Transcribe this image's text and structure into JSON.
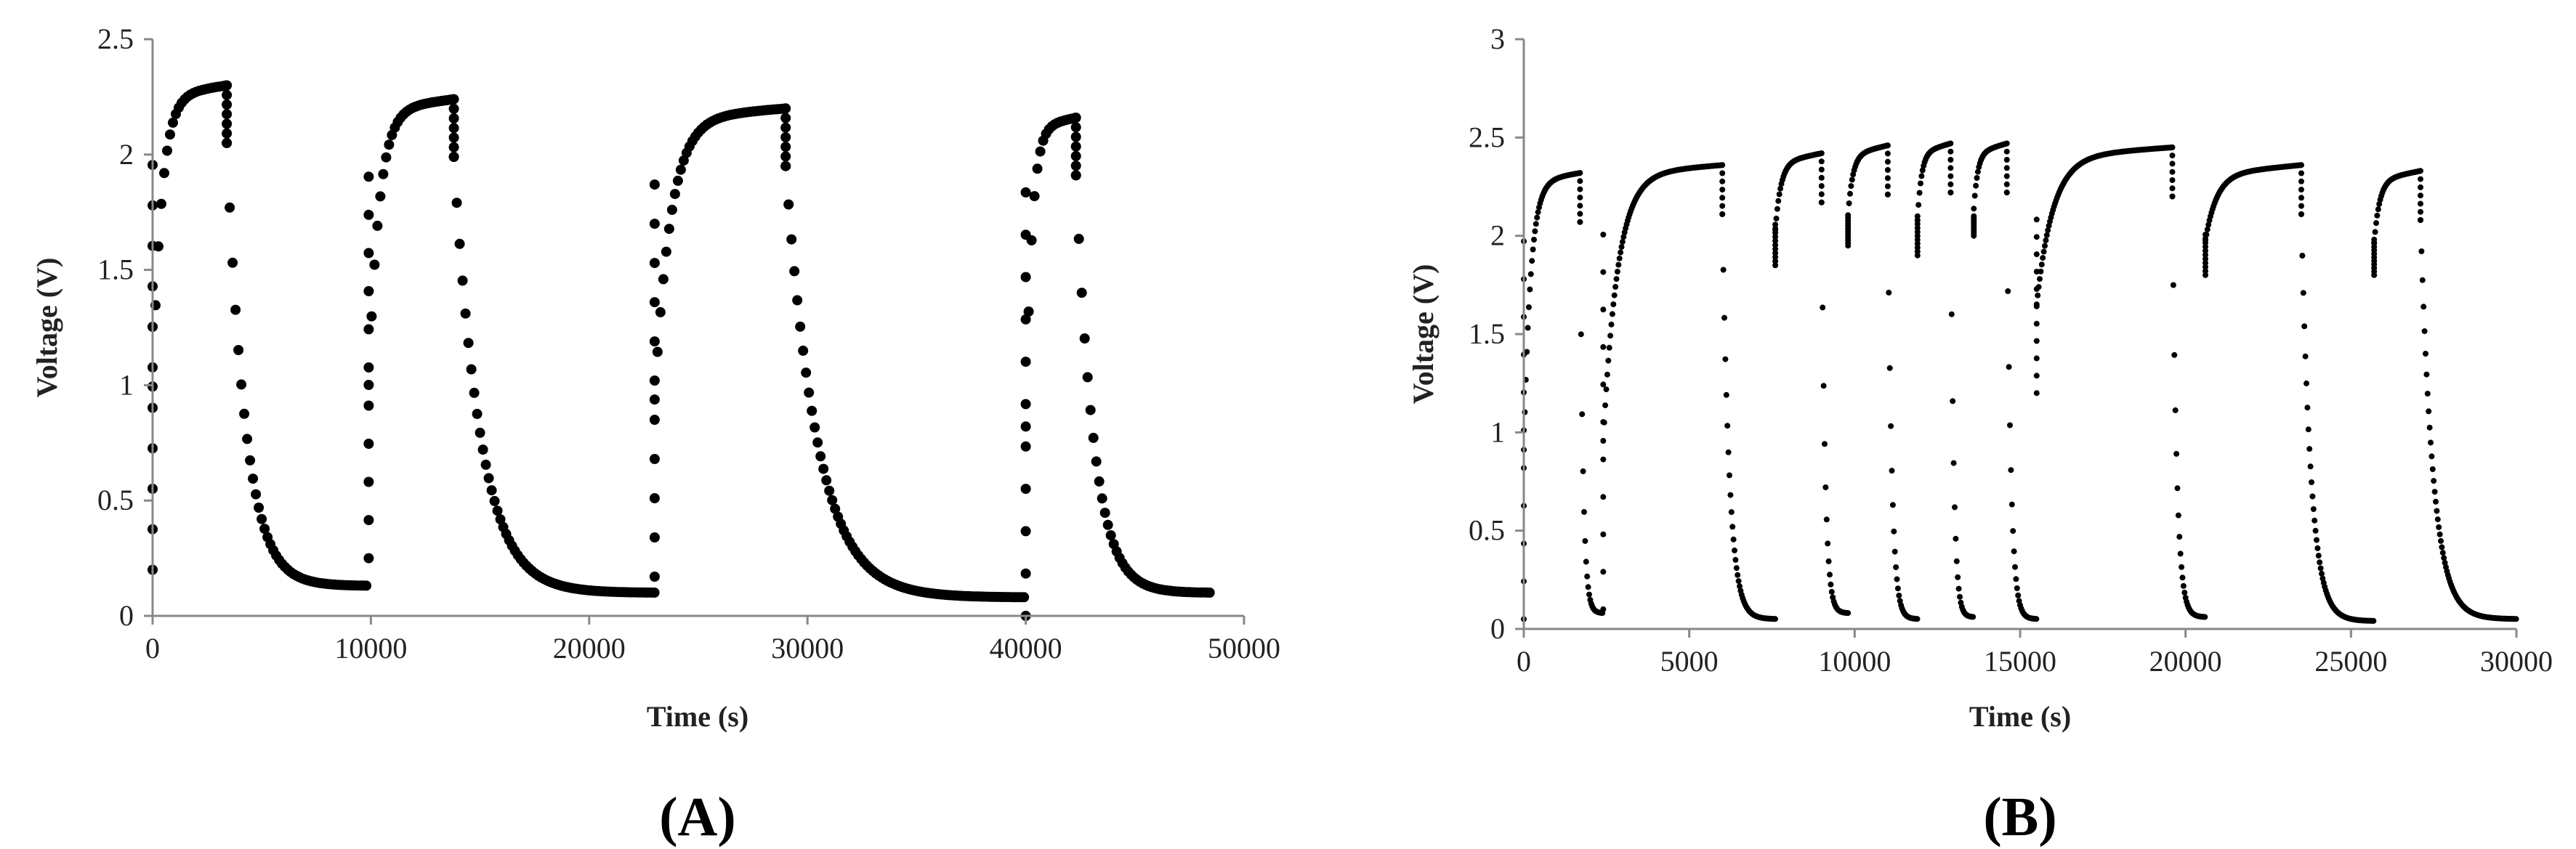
{
  "chart_data": [
    {
      "type": "scatter",
      "panel_label": "(A)",
      "xlabel": "Time (s)",
      "ylabel": "Voltage (V)",
      "xlim": [
        0,
        50000
      ],
      "ylim": [
        0,
        2.5
      ],
      "xticks": [
        0,
        10000,
        20000,
        30000,
        40000,
        50000
      ],
      "yticks": [
        0,
        0.5,
        1,
        1.5,
        2,
        2.5
      ],
      "xtick_labels": [
        "0",
        "10000",
        "20000",
        "30000",
        "40000",
        "50000"
      ],
      "ytick_labels": [
        "0",
        "0.5",
        "1",
        "1.5",
        "2",
        "2.5"
      ],
      "grid": false,
      "marker_color": "#000000",
      "cycles": [
        {
          "charge_start": 0,
          "charge_end": 3400,
          "v_start": 0.2,
          "v_plateau": 2.3,
          "discharge_end": 9900,
          "v_end": 0.13
        },
        {
          "charge_start": 9900,
          "charge_end": 13800,
          "v_start": 0.25,
          "v_plateau": 2.24,
          "discharge_end": 23000,
          "v_end": 0.1
        },
        {
          "charge_start": 23000,
          "charge_end": 29000,
          "v_start": 0.17,
          "v_plateau": 2.2,
          "discharge_end": 40000,
          "v_end": 0.08
        },
        {
          "charge_start": 40000,
          "charge_end": 42300,
          "v_start": 0.0,
          "v_plateau": 2.16,
          "discharge_end": 48500,
          "v_end": 0.1
        }
      ]
    },
    {
      "type": "scatter",
      "panel_label": "(B)",
      "xlabel": "Time (s)",
      "ylabel": "Voltage (V)",
      "xlim": [
        0,
        30000
      ],
      "ylim": [
        0,
        3
      ],
      "xticks": [
        0,
        5000,
        10000,
        15000,
        20000,
        25000,
        30000
      ],
      "yticks": [
        0,
        0.5,
        1,
        1.5,
        2,
        2.5,
        3
      ],
      "xtick_labels": [
        "0",
        "5000",
        "10000",
        "15000",
        "20000",
        "25000",
        "30000"
      ],
      "ytick_labels": [
        "0",
        "0.5",
        "1",
        "1.5",
        "2",
        "2.5",
        "3"
      ],
      "grid": false,
      "marker_color": "#000000",
      "cycles": [
        {
          "charge_start": 0,
          "charge_end": 1700,
          "v_start": 0.05,
          "v_plateau": 2.32,
          "discharge_end": 2400,
          "v_end": 0.08
        },
        {
          "charge_start": 2400,
          "charge_end": 6000,
          "v_start": 0.1,
          "v_plateau": 2.36,
          "discharge_end": 7600,
          "v_end": 0.05
        },
        {
          "charge_start": 7600,
          "charge_end": 9000,
          "v_start": 1.85,
          "v_plateau": 2.42,
          "discharge_end": 9800,
          "v_end": 0.08
        },
        {
          "charge_start": 9800,
          "charge_end": 11000,
          "v_start": 1.95,
          "v_plateau": 2.46,
          "discharge_end": 11900,
          "v_end": 0.05
        },
        {
          "charge_start": 11900,
          "charge_end": 12900,
          "v_start": 1.9,
          "v_plateau": 2.47,
          "discharge_end": 13600,
          "v_end": 0.06
        },
        {
          "charge_start": 13600,
          "charge_end": 14600,
          "v_start": 2.0,
          "v_plateau": 2.47,
          "discharge_end": 15500,
          "v_end": 0.05
        },
        {
          "charge_start": 15500,
          "charge_end": 19600,
          "v_start": 1.2,
          "v_plateau": 2.45,
          "discharge_end": 20600,
          "v_end": 0.06
        },
        {
          "charge_start": 20600,
          "charge_end": 23500,
          "v_start": 1.8,
          "v_plateau": 2.36,
          "discharge_end": 25700,
          "v_end": 0.04
        },
        {
          "charge_start": 25700,
          "charge_end": 27100,
          "v_start": 1.8,
          "v_plateau": 2.33,
          "discharge_end": 30000,
          "v_end": 0.05
        }
      ]
    }
  ]
}
